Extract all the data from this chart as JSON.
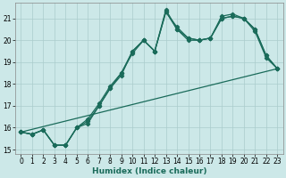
{
  "xlabel": "Humidex (Indice chaleur)",
  "xlim": [
    -0.5,
    23.5
  ],
  "ylim": [
    14.8,
    21.7
  ],
  "yticks": [
    15,
    16,
    17,
    18,
    19,
    20,
    21
  ],
  "xticks": [
    0,
    1,
    2,
    3,
    4,
    5,
    6,
    7,
    8,
    9,
    10,
    11,
    12,
    13,
    14,
    15,
    16,
    17,
    18,
    19,
    20,
    21,
    22,
    23
  ],
  "bg_color": "#cce8e8",
  "grid_color": "#aacccc",
  "line_color": "#1a6b5a",
  "lines": [
    {
      "x": [
        0,
        1,
        2,
        3,
        4,
        5,
        6,
        7,
        8,
        9,
        10,
        11,
        12,
        13,
        14,
        15,
        16,
        17,
        18,
        19,
        20,
        21,
        22,
        23
      ],
      "y": [
        15.8,
        15.7,
        15.9,
        15.2,
        15.2,
        16.0,
        16.2,
        17.0,
        17.8,
        18.5,
        19.4,
        20.0,
        19.5,
        21.4,
        20.5,
        20.0,
        20.0,
        20.1,
        21.1,
        21.2,
        21.0,
        20.5,
        19.3,
        18.7
      ],
      "marker": true
    },
    {
      "x": [
        0,
        1,
        2,
        3,
        4,
        5,
        6,
        7,
        8,
        9,
        10,
        11,
        12,
        13,
        14,
        15,
        16,
        17,
        18,
        19,
        20,
        21,
        22,
        23
      ],
      "y": [
        15.8,
        15.7,
        15.9,
        15.2,
        15.2,
        16.0,
        16.3,
        17.0,
        17.8,
        18.4,
        19.5,
        20.0,
        19.5,
        21.3,
        20.5,
        20.1,
        20.0,
        20.1,
        21.0,
        21.1,
        21.0,
        20.4,
        19.2,
        18.7
      ],
      "marker": true
    },
    {
      "x": [
        0,
        1,
        2,
        3,
        4,
        5,
        6,
        7,
        8,
        9,
        10,
        11,
        12,
        13,
        14,
        15,
        16,
        17,
        18,
        19,
        20,
        21,
        22,
        23
      ],
      "y": [
        15.8,
        15.7,
        15.9,
        15.2,
        15.2,
        16.0,
        16.4,
        17.1,
        17.9,
        18.5,
        19.5,
        20.0,
        19.5,
        21.3,
        20.6,
        20.1,
        20.0,
        20.1,
        21.0,
        21.1,
        21.0,
        20.5,
        19.3,
        18.7
      ],
      "marker": true
    },
    {
      "x": [
        0,
        23
      ],
      "y": [
        15.8,
        18.7
      ],
      "marker": false
    }
  ],
  "markersize": 2.2,
  "linewidth": 0.9,
  "xlabel_fontsize": 6.5,
  "tick_fontsize": 5.5
}
